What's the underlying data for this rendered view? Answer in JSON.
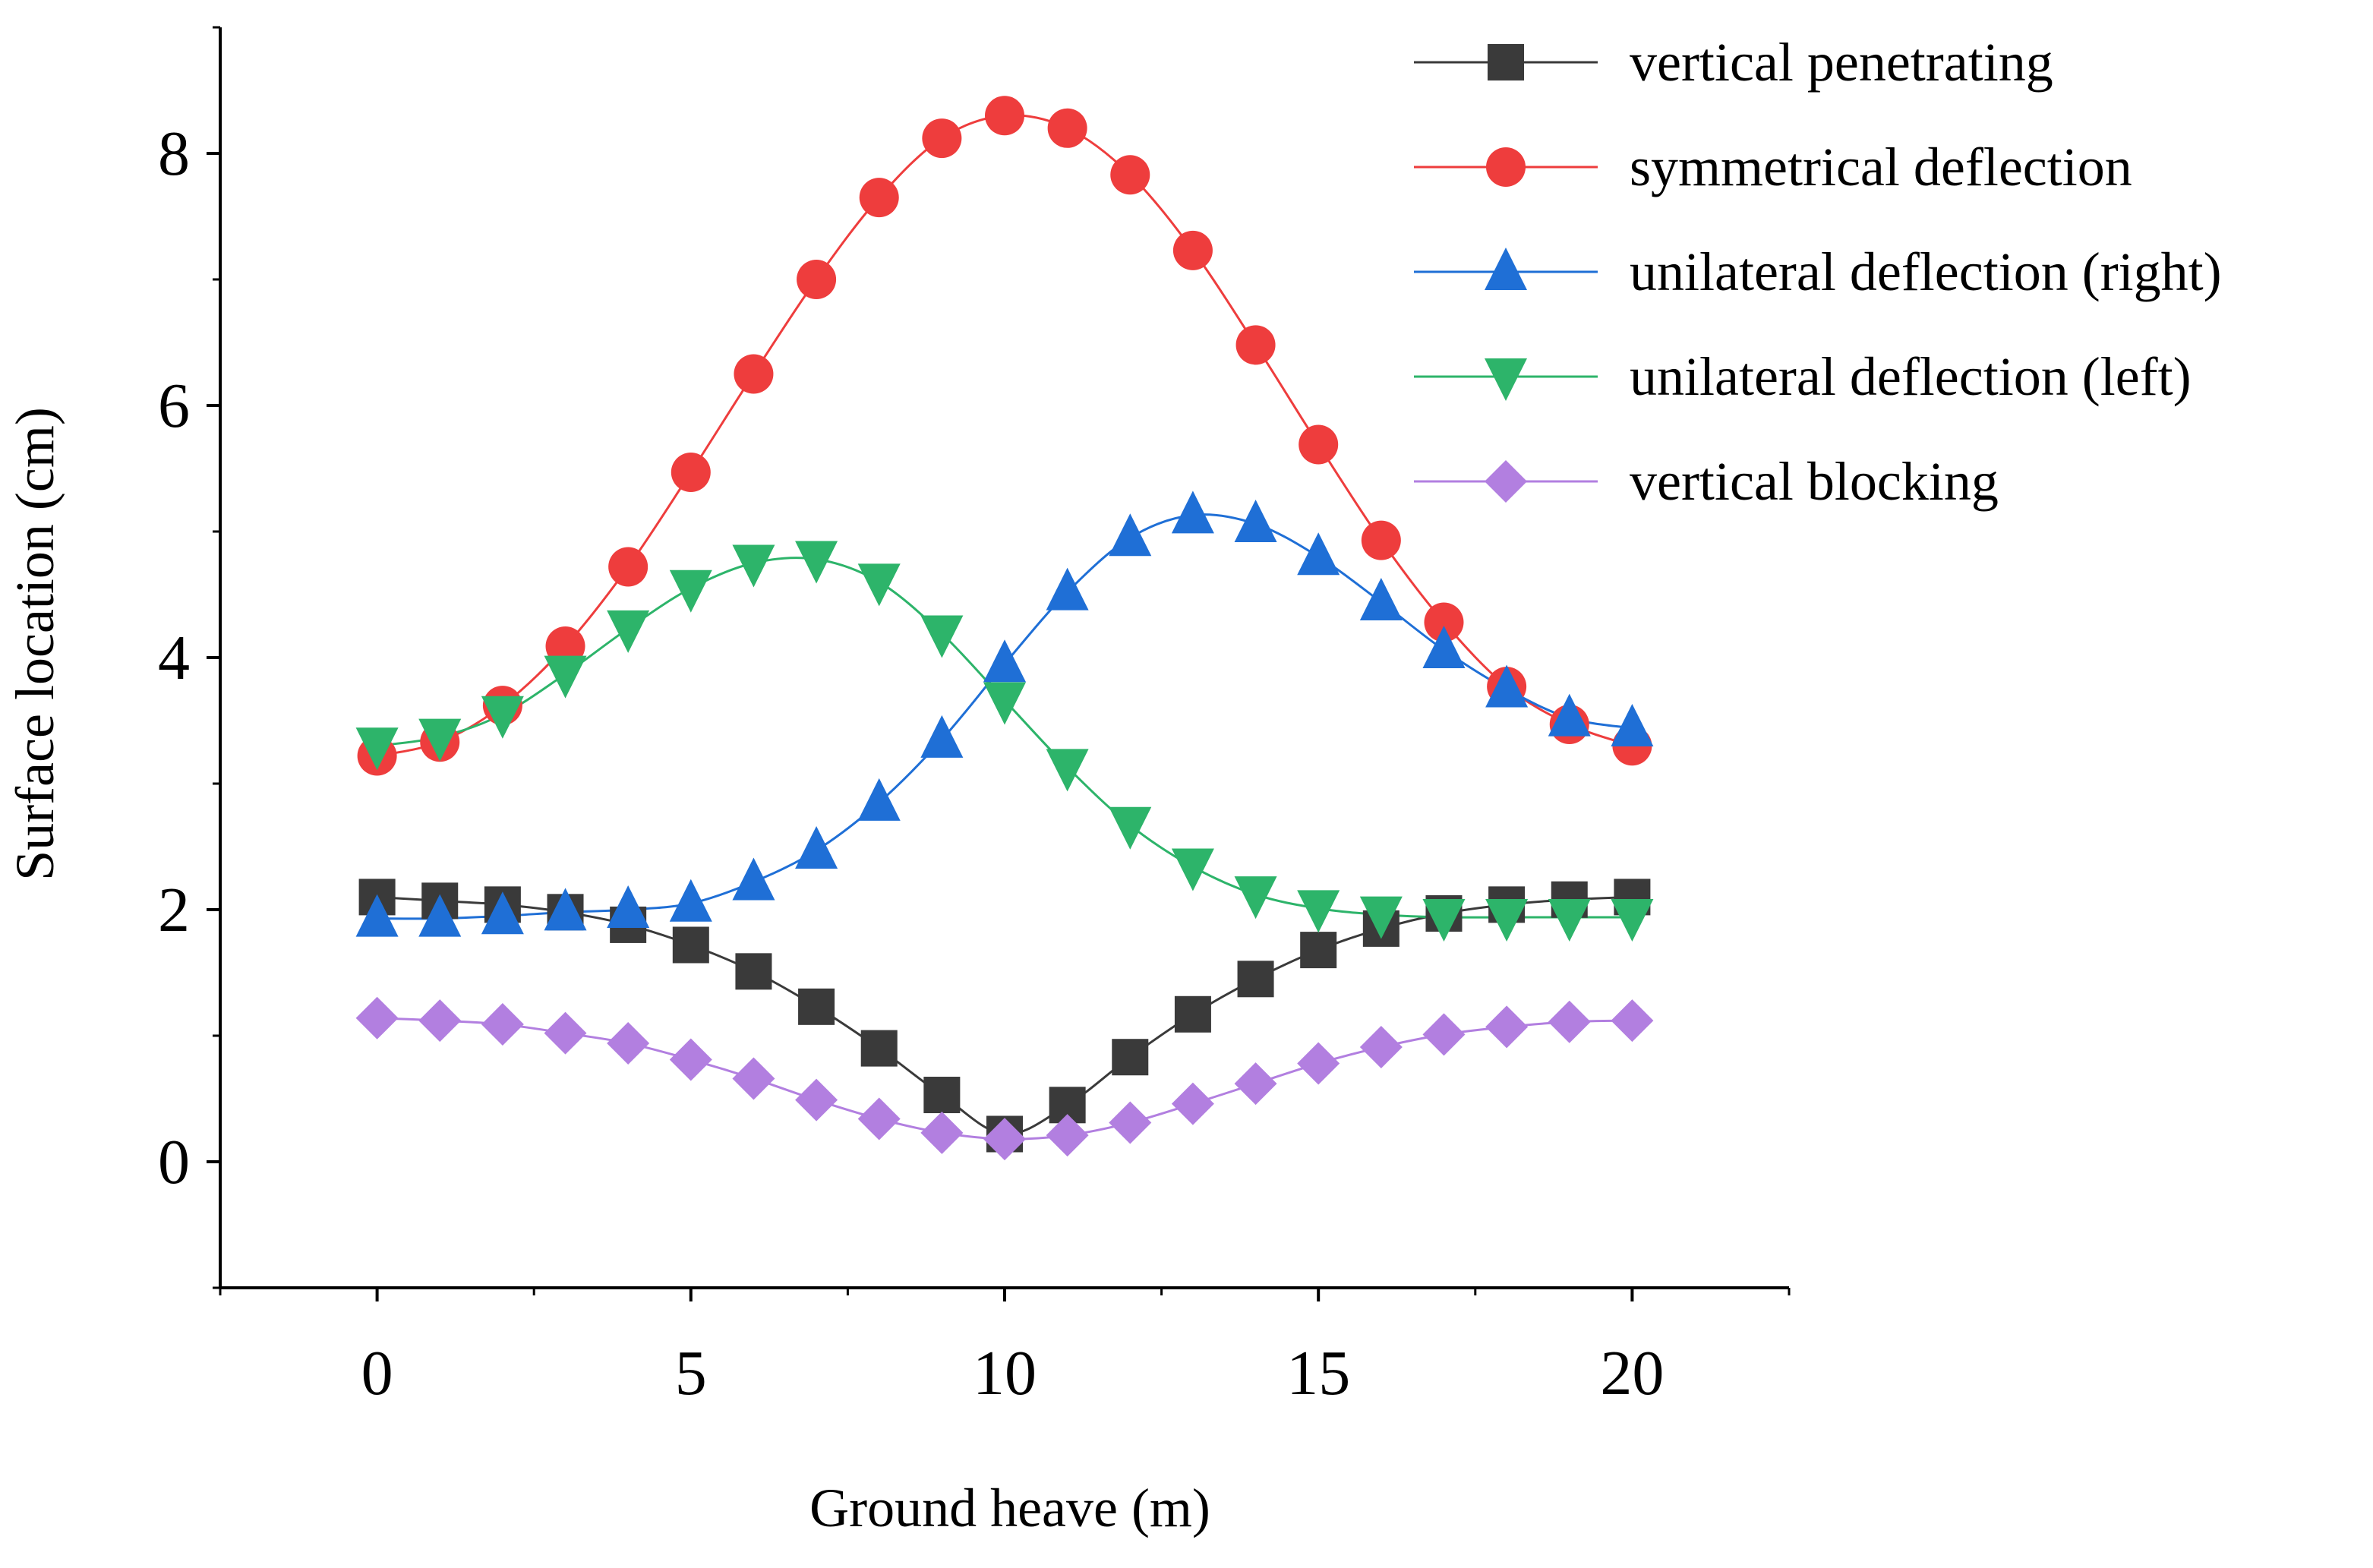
{
  "chart_data": {
    "type": "line",
    "xlabel": "Ground heave (m)",
    "ylabel": "Surface location (cm)",
    "xlim": [
      -2.5,
      22.5
    ],
    "ylim": [
      -1,
      9
    ],
    "xticks": [
      0,
      5,
      10,
      15,
      20
    ],
    "yticks": [
      0,
      2,
      4,
      6,
      8
    ],
    "x": [
      0,
      1,
      2,
      3,
      4,
      5,
      6,
      7,
      8,
      9,
      10,
      11,
      12,
      13,
      14,
      15,
      16,
      17,
      18,
      19,
      20
    ],
    "legend_position": "top-right",
    "grid": false,
    "series": [
      {
        "name": "vertical penetrating",
        "color": "#3a3a3a",
        "marker": "square",
        "values": [
          2.1,
          2.07,
          2.04,
          1.98,
          1.88,
          1.72,
          1.51,
          1.23,
          0.9,
          0.53,
          0.22,
          0.45,
          0.83,
          1.17,
          1.45,
          1.68,
          1.85,
          1.97,
          2.04,
          2.08,
          2.1
        ]
      },
      {
        "name": "symmetrical deflection",
        "color": "#ee3d3d",
        "marker": "circle",
        "values": [
          3.22,
          3.33,
          3.62,
          4.09,
          4.72,
          5.47,
          6.25,
          7.0,
          7.65,
          8.12,
          8.3,
          8.2,
          7.83,
          7.23,
          6.48,
          5.69,
          4.93,
          4.28,
          3.77,
          3.47,
          3.3
        ]
      },
      {
        "name": "unilateral deflection (right)",
        "color": "#1f6fd6",
        "marker": "triangle-up",
        "values": [
          1.93,
          1.93,
          1.95,
          1.98,
          2.0,
          2.05,
          2.22,
          2.47,
          2.85,
          3.35,
          3.95,
          4.52,
          4.95,
          5.13,
          5.06,
          4.8,
          4.44,
          4.06,
          3.75,
          3.52,
          3.44
        ]
      },
      {
        "name": "unilateral deflection (left)",
        "color": "#2db46a",
        "marker": "triangle-down",
        "values": [
          3.3,
          3.37,
          3.55,
          3.87,
          4.23,
          4.55,
          4.75,
          4.78,
          4.6,
          4.19,
          3.66,
          3.13,
          2.67,
          2.34,
          2.12,
          2.01,
          1.96,
          1.94,
          1.94,
          1.94,
          1.94
        ]
      },
      {
        "name": "vertical blocking",
        "color": "#b27fe0",
        "marker": "diamond",
        "values": [
          1.14,
          1.12,
          1.09,
          1.02,
          0.94,
          0.81,
          0.66,
          0.49,
          0.34,
          0.23,
          0.18,
          0.21,
          0.31,
          0.46,
          0.62,
          0.78,
          0.91,
          1.01,
          1.07,
          1.11,
          1.12
        ]
      }
    ]
  }
}
